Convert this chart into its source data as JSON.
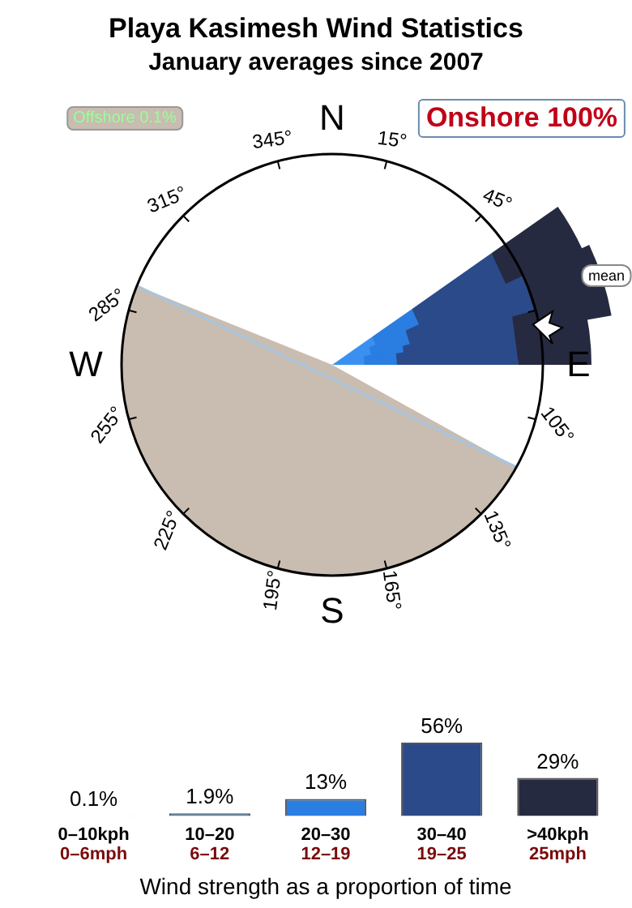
{
  "chart_data": {
    "type": "bar",
    "title": "Playa Kasimesh Wind Statistics",
    "subtitle": "January averages since 2007",
    "xlabel": "Wind strength as a proportion of time",
    "categories": [
      "0–10kph\n0–6mph",
      "10–20\n6–12",
      "20–30\n12–19",
      "30–40\n19–25",
      ">40kph\n25mph"
    ],
    "values": [
      0.1,
      1.9,
      13,
      56,
      29
    ],
    "value_labels": [
      "0.1%",
      "1.9%",
      "13%",
      "56%",
      "29%"
    ],
    "colors": [
      "#b0b8c0",
      "#4a86c8",
      "#2a7de1",
      "#2b4a8a",
      "#262a40"
    ],
    "annotations": [
      "Offshore 0.1%",
      "Onshore 100%",
      "N",
      "E",
      "S",
      "W",
      "345°",
      "15°",
      "45°",
      "105°",
      "135°",
      "165°",
      "195°",
      "225°",
      "255°",
      "285°",
      "315°",
      "mean"
    ],
    "legend": false,
    "grid": false
  }
}
